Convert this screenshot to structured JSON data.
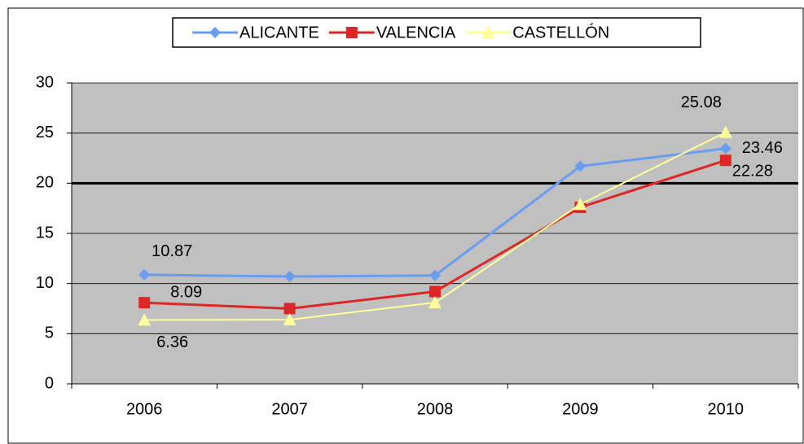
{
  "chart_data": {
    "type": "line",
    "categories": [
      "2006",
      "2007",
      "2008",
      "2009",
      "2010"
    ],
    "series": [
      {
        "name": "ALICANTE",
        "color": "#6a9cf0",
        "marker": "diamond",
        "values": [
          10.87,
          10.7,
          10.8,
          21.7,
          23.46
        ]
      },
      {
        "name": "VALENCIA",
        "color": "#dd2626",
        "marker": "square",
        "values": [
          8.09,
          7.5,
          9.2,
          17.6,
          22.28
        ]
      },
      {
        "name": "CASTELLÓN",
        "color": "#ffff99",
        "marker": "triangle",
        "values": [
          6.36,
          6.4,
          8.1,
          17.9,
          25.08
        ]
      }
    ],
    "ylim": [
      0,
      30
    ],
    "yticks": [
      0,
      5,
      10,
      15,
      20,
      25,
      30
    ],
    "grid": true,
    "reference_line": 20,
    "legend": "top"
  }
}
